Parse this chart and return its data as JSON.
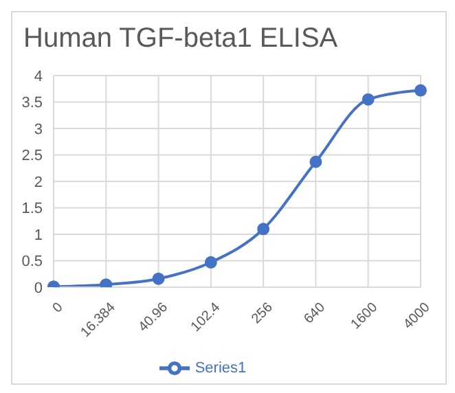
{
  "chart_data": {
    "type": "line",
    "title": "Human TGF-beta1 ELISA",
    "categories": [
      "0",
      "16.384",
      "40.96",
      "102.4",
      "256",
      "640",
      "1600",
      "4000"
    ],
    "series": [
      {
        "name": "Series1",
        "color": "#4472c4",
        "values": [
          0.01,
          0.05,
          0.16,
          0.47,
          1.1,
          2.37,
          3.55,
          3.72
        ]
      }
    ],
    "ylim": [
      0,
      4
    ],
    "yticks": [
      0,
      0.5,
      1,
      1.5,
      2,
      2.5,
      3,
      3.5,
      4
    ],
    "grid": true,
    "legend": "bottom",
    "marker": "circle"
  }
}
